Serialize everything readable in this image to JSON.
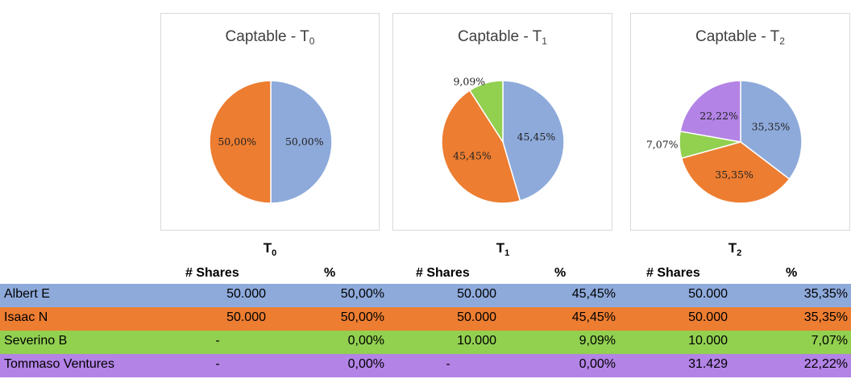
{
  "chart_data": [
    {
      "type": "pie",
      "title": "Captable - T",
      "title_sub": "0",
      "labels": [
        "Albert E",
        "Isaac N"
      ],
      "values": [
        50.0,
        50.0
      ],
      "value_labels": [
        "50,00%",
        "50,00%"
      ],
      "colors": [
        "#8eaadb",
        "#ed7d31"
      ]
    },
    {
      "type": "pie",
      "title": "Captable - T",
      "title_sub": "1",
      "labels": [
        "Albert E",
        "Isaac N",
        "Severino B"
      ],
      "values": [
        45.45,
        45.45,
        9.09
      ],
      "value_labels": [
        "45,45%",
        "45,45%",
        "9,09%"
      ],
      "colors": [
        "#8eaadb",
        "#ed7d31",
        "#92d050"
      ]
    },
    {
      "type": "pie",
      "title": "Captable - T",
      "title_sub": "2",
      "labels": [
        "Albert E",
        "Isaac N",
        "Severino B",
        "Tommaso Ventures"
      ],
      "values": [
        35.35,
        35.35,
        7.07,
        22.22
      ],
      "value_labels": [
        "35,35%",
        "35,35%",
        "7,07%",
        "22,22%"
      ],
      "colors": [
        "#8eaadb",
        "#ed7d31",
        "#92d050",
        "#b383e6"
      ]
    }
  ],
  "table": {
    "periods": [
      {
        "label": "T",
        "sub": "0"
      },
      {
        "label": "T",
        "sub": "1"
      },
      {
        "label": "T",
        "sub": "2"
      }
    ],
    "col_shares": "# Shares",
    "col_pct": "%",
    "rows": [
      {
        "name": "Albert E",
        "color": "#8eaadb",
        "cells": [
          "50.000",
          "50,00%",
          "50.000",
          "45,45%",
          "50.000",
          "35,35%"
        ]
      },
      {
        "name": "Isaac N",
        "color": "#ed7d31",
        "cells": [
          "50.000",
          "50,00%",
          "50.000",
          "45,45%",
          "50.000",
          "35,35%"
        ]
      },
      {
        "name": "Severino B",
        "color": "#92d050",
        "cells": [
          "-",
          "0,00%",
          "10.000",
          "9,09%",
          "10.000",
          "7,07%"
        ]
      },
      {
        "name": "Tommaso Ventures",
        "color": "#b383e6",
        "cells": [
          "-",
          "0,00%",
          "-",
          "0,00%",
          "31.429",
          "22,22%"
        ]
      }
    ]
  }
}
